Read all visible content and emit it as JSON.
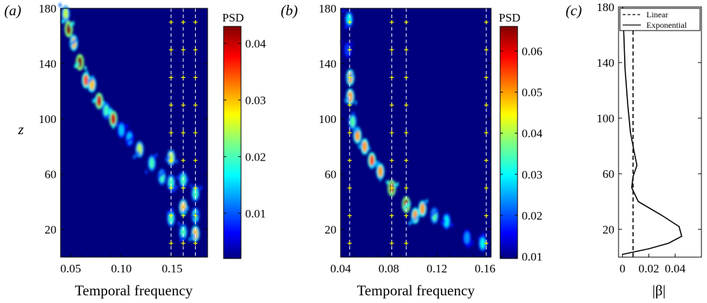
{
  "colors": {
    "background": "#00007f",
    "dashed_lines": "#ffffff",
    "markers": "#ffff00",
    "colormap": "jet"
  },
  "chart_data": [
    {
      "panel_label": "(a)",
      "type": "heatmap",
      "xlabel": "Temporal frequency",
      "ylabel": "z",
      "xlim": [
        0.04,
        0.185
      ],
      "ylim": [
        0,
        180
      ],
      "xticks": [
        "0.05",
        "0.10",
        "0.15"
      ],
      "xtick_values": [
        0.05,
        0.1,
        0.15
      ],
      "xtick_minor": [
        0.06,
        0.07,
        0.08,
        0.09,
        0.11,
        0.12,
        0.13,
        0.14,
        0.16,
        0.17
      ],
      "yticks": [
        "180",
        "140",
        "100",
        "60",
        "20"
      ],
      "ytick_values": [
        180,
        140,
        100,
        60,
        20
      ],
      "colorbar": {
        "title": "PSD",
        "range": [
          0.002,
          0.043
        ],
        "ticks": [
          "0.04",
          "0.03",
          "0.02",
          "0.01"
        ],
        "tick_values": [
          0.04,
          0.03,
          0.02,
          0.01
        ]
      },
      "dashed_lines_x": [
        0.149,
        0.161,
        0.173
      ],
      "ridge": [
        {
          "x": 0.045,
          "z": 176,
          "psd": 0.025
        },
        {
          "x": 0.048,
          "z": 165,
          "psd": 0.043
        },
        {
          "x": 0.053,
          "z": 155,
          "psd": 0.03
        },
        {
          "x": 0.059,
          "z": 141,
          "psd": 0.043
        },
        {
          "x": 0.065,
          "z": 128,
          "psd": 0.035
        },
        {
          "x": 0.071,
          "z": 125,
          "psd": 0.03
        },
        {
          "x": 0.078,
          "z": 113,
          "psd": 0.04
        },
        {
          "x": 0.085,
          "z": 106,
          "psd": 0.02
        },
        {
          "x": 0.092,
          "z": 100,
          "psd": 0.04
        },
        {
          "x": 0.1,
          "z": 92,
          "psd": 0.015
        },
        {
          "x": 0.108,
          "z": 86,
          "psd": 0.015
        },
        {
          "x": 0.118,
          "z": 78,
          "psd": 0.025
        },
        {
          "x": 0.13,
          "z": 68,
          "psd": 0.02
        },
        {
          "x": 0.14,
          "z": 58,
          "psd": 0.02
        },
        {
          "x": 0.149,
          "z": 72,
          "psd": 0.025
        },
        {
          "x": 0.149,
          "z": 54,
          "psd": 0.02
        },
        {
          "x": 0.149,
          "z": 28,
          "psd": 0.02
        },
        {
          "x": 0.161,
          "z": 56,
          "psd": 0.02
        },
        {
          "x": 0.161,
          "z": 36,
          "psd": 0.03
        },
        {
          "x": 0.161,
          "z": 18,
          "psd": 0.02
        },
        {
          "x": 0.173,
          "z": 46,
          "psd": 0.02
        },
        {
          "x": 0.173,
          "z": 30,
          "psd": 0.02
        },
        {
          "x": 0.173,
          "z": 17,
          "psd": 0.03
        }
      ]
    },
    {
      "panel_label": "(b)",
      "type": "heatmap",
      "xlabel": "Temporal frequency",
      "ylabel": "",
      "xlim": [
        0.04,
        0.165
      ],
      "ylim": [
        0,
        180
      ],
      "xticks": [
        "0.04",
        "0.08",
        "0.12",
        "0.16"
      ],
      "xtick_values": [
        0.04,
        0.08,
        0.12,
        0.16
      ],
      "xtick_minor": [
        0.05,
        0.06,
        0.07,
        0.09,
        0.1,
        0.11,
        0.13,
        0.14,
        0.15
      ],
      "yticks": [
        "180",
        "140",
        "100",
        "60",
        "20"
      ],
      "ytick_values": [
        180,
        140,
        100,
        60,
        20
      ],
      "colorbar": {
        "title": "PSD",
        "range": [
          0.0095,
          0.066
        ],
        "ticks": [
          "0.06",
          "0.05",
          "0.04",
          "0.03",
          "0.02",
          "0.01"
        ],
        "tick_values": [
          0.06,
          0.05,
          0.04,
          0.03,
          0.02,
          0.01
        ]
      },
      "dashed_lines_x": [
        0.0475,
        0.0825,
        0.0945,
        0.161
      ],
      "ridge": [
        {
          "x": 0.047,
          "z": 172,
          "psd": 0.03
        },
        {
          "x": 0.046,
          "z": 150,
          "psd": 0.02
        },
        {
          "x": 0.048,
          "z": 130,
          "psd": 0.05
        },
        {
          "x": 0.048,
          "z": 116,
          "psd": 0.05
        },
        {
          "x": 0.05,
          "z": 98,
          "psd": 0.035
        },
        {
          "x": 0.054,
          "z": 88,
          "psd": 0.05
        },
        {
          "x": 0.06,
          "z": 80,
          "psd": 0.05
        },
        {
          "x": 0.066,
          "z": 70,
          "psd": 0.055
        },
        {
          "x": 0.073,
          "z": 62,
          "psd": 0.05
        },
        {
          "x": 0.0825,
          "z": 50,
          "psd": 0.065
        },
        {
          "x": 0.0945,
          "z": 38,
          "psd": 0.065
        },
        {
          "x": 0.102,
          "z": 30,
          "psd": 0.05
        },
        {
          "x": 0.108,
          "z": 35,
          "psd": 0.05
        },
        {
          "x": 0.118,
          "z": 30,
          "psd": 0.035
        },
        {
          "x": 0.128,
          "z": 26,
          "psd": 0.03
        },
        {
          "x": 0.145,
          "z": 14,
          "psd": 0.025
        },
        {
          "x": 0.158,
          "z": 10,
          "psd": 0.03
        }
      ]
    },
    {
      "panel_label": "(c)",
      "type": "line",
      "xlabel": "|β|",
      "ylabel": "",
      "xlim": [
        -0.003,
        0.06
      ],
      "ylim": [
        0,
        180
      ],
      "xticks": [
        "0",
        "0.02",
        "0.04"
      ],
      "xtick_values": [
        0,
        0.02,
        0.04
      ],
      "yticks": [
        "180",
        "140",
        "100",
        "60",
        "20"
      ],
      "ytick_values": [
        180,
        140,
        100,
        60,
        20
      ],
      "legend": {
        "position": "top",
        "entries": [
          "Linear",
          "Exponential"
        ]
      },
      "series": [
        {
          "name": "Linear",
          "style": "dashed",
          "x": [
            0.008,
            0.008
          ],
          "z": [
            0,
            180
          ]
        },
        {
          "name": "Exponential",
          "style": "solid",
          "x": [
            0.0,
            0.02,
            0.035,
            0.045,
            0.043,
            0.03,
            0.012,
            0.007,
            0.008,
            0.011,
            0.009,
            0.006,
            0.004,
            0.002,
            0.001,
            0.0
          ],
          "z": [
            2,
            6,
            10,
            15,
            22,
            30,
            40,
            50,
            58,
            66,
            75,
            90,
            110,
            135,
            160,
            180
          ]
        }
      ]
    }
  ]
}
